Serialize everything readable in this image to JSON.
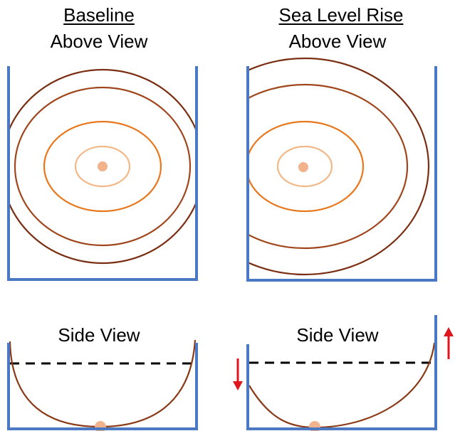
{
  "panels": {
    "baseline": {
      "title": "Baseline",
      "above_label": "Above View",
      "side_label": "Side View"
    },
    "sea_level_rise": {
      "title": "Sea Level Rise",
      "above_label": "Above View",
      "side_label": "Side View"
    }
  },
  "colors": {
    "wall": "#4a78c2",
    "contour_outer": "#7a2e12",
    "contour_mid": "#a0461c",
    "contour_inner": "#e8781e",
    "contour_core": "#f2b887",
    "center_dot": "#f2b28c",
    "curve": "#8a3a16",
    "waterline": "#000000",
    "arrow": "#e0161d"
  },
  "icons": {
    "up": "arrow-up-icon",
    "down": "arrow-down-icon"
  }
}
